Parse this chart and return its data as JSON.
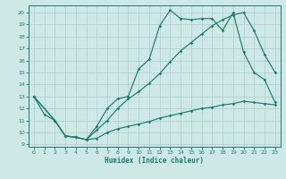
{
  "xlabel": "Humidex (Indice chaleur)",
  "xlim": [
    -0.5,
    23.5
  ],
  "ylim": [
    8.8,
    20.6
  ],
  "yticks": [
    9,
    10,
    11,
    12,
    13,
    14,
    15,
    16,
    17,
    18,
    19,
    20
  ],
  "xticks": [
    0,
    1,
    2,
    3,
    4,
    5,
    6,
    7,
    8,
    9,
    10,
    11,
    12,
    13,
    14,
    15,
    16,
    17,
    18,
    19,
    20,
    21,
    22,
    23
  ],
  "bg_color": "#cde8e5",
  "line_color": "#1e7b6e",
  "grid_color": "#aacfcb",
  "line1_x": [
    0,
    1,
    2,
    3,
    4,
    5,
    6,
    7,
    8,
    9,
    10,
    11,
    12,
    13,
    14,
    15,
    16,
    17,
    18,
    19,
    20,
    21,
    22,
    23
  ],
  "line1_y": [
    13.0,
    11.5,
    11.0,
    9.7,
    9.6,
    9.4,
    10.5,
    12.0,
    12.8,
    13.0,
    15.3,
    16.1,
    18.9,
    20.2,
    19.5,
    19.4,
    19.5,
    19.5,
    18.5,
    20.0,
    16.7,
    15.0,
    14.4,
    12.5
  ],
  "line2_x": [
    0,
    2,
    3,
    4,
    5,
    6,
    7,
    8,
    9,
    10,
    11,
    12,
    13,
    14,
    15,
    16,
    17,
    18,
    19,
    20,
    21,
    22,
    23
  ],
  "line2_y": [
    13.0,
    11.0,
    9.7,
    9.6,
    9.4,
    10.2,
    11.0,
    12.0,
    12.8,
    13.4,
    14.1,
    14.9,
    15.9,
    16.8,
    17.5,
    18.2,
    18.9,
    19.4,
    19.8,
    20.0,
    18.5,
    16.5,
    15.0
  ],
  "line3_x": [
    0,
    2,
    3,
    4,
    5,
    6,
    7,
    8,
    9,
    10,
    11,
    12,
    13,
    14,
    15,
    16,
    17,
    18,
    19,
    20,
    21,
    22,
    23
  ],
  "line3_y": [
    13.0,
    11.0,
    9.7,
    9.6,
    9.4,
    9.5,
    10.0,
    10.3,
    10.5,
    10.7,
    10.9,
    11.2,
    11.4,
    11.6,
    11.8,
    12.0,
    12.1,
    12.3,
    12.4,
    12.6,
    12.5,
    12.4,
    12.3
  ]
}
